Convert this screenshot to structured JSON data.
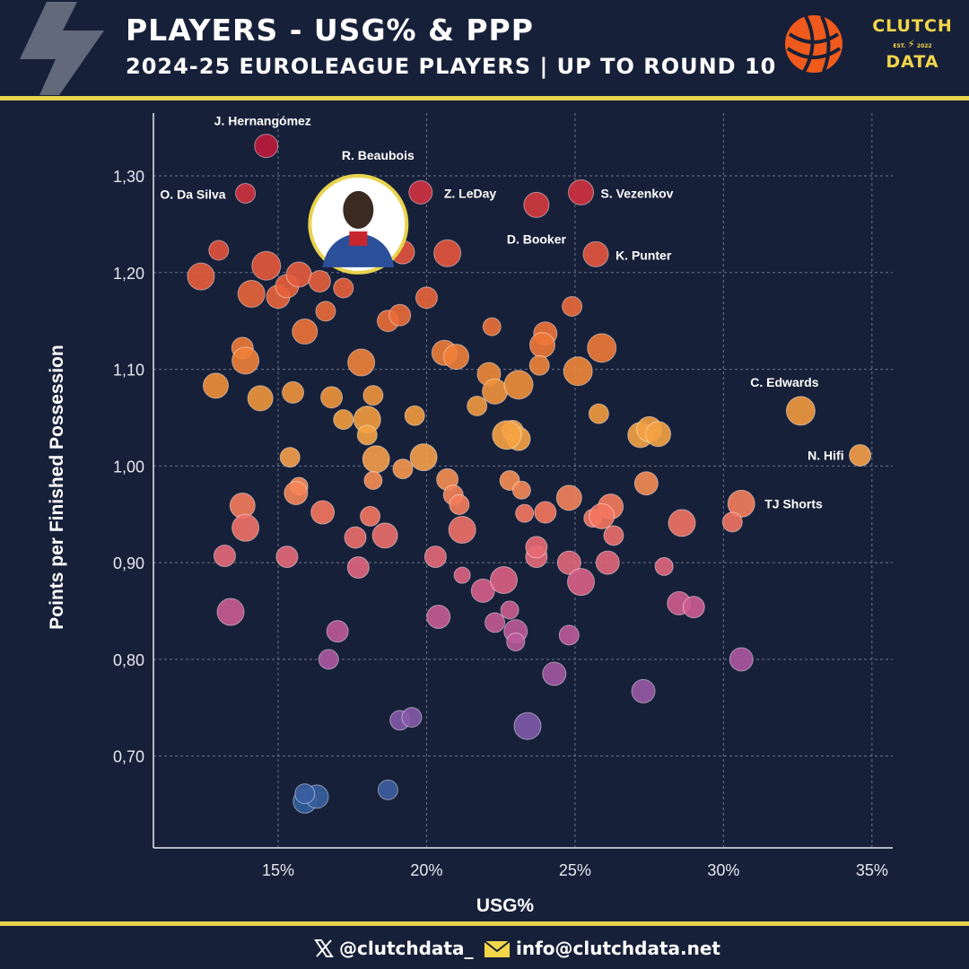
{
  "header": {
    "title": "PLAYERS - USG% & PPP",
    "subtitle": "2024-25 EUROLEAGUE PLAYERS | UP TO ROUND 10",
    "brand_line1": "CLUTCH",
    "brand_est": "EST.",
    "brand_year": "2022",
    "brand_line3": "DATA"
  },
  "footer": {
    "twitter": "@clutchdata_",
    "email": "info@clutchdata.net"
  },
  "colors": {
    "background": "#172039",
    "accent": "#e8d34d",
    "grid": "#6b7386"
  },
  "chart_data": {
    "type": "scatter",
    "xlabel": "USG%",
    "ylabel": "Points per Finished Possession",
    "xlim": [
      10.8,
      35.7
    ],
    "ylim": [
      0.605,
      1.365
    ],
    "x_ticks": [
      15,
      20,
      25,
      30,
      35
    ],
    "x_tick_labels": [
      "15%",
      "20%",
      "25%",
      "30%",
      "35%"
    ],
    "y_ticks": [
      0.7,
      0.8,
      0.9,
      1.0,
      1.1,
      1.2,
      1.3
    ],
    "y_tick_labels": [
      "0,70",
      "0,80",
      "0,90",
      "1,00",
      "1,10",
      "1,20",
      "1,30"
    ],
    "grid": true,
    "color_scale": "blue (low PPP) to purple to pink to orange to yellow to red (high PPP)",
    "highlighted_player": "R. Beaubois",
    "labeled_points": [
      {
        "name": "J. Hernangómez",
        "x": 14.6,
        "y": 1.331
      },
      {
        "name": "O. Da Silva",
        "x": 13.9,
        "y": 1.282
      },
      {
        "name": "R. Beaubois",
        "x": 17.7,
        "y": 1.25
      },
      {
        "name": "Z. LeDay",
        "x": 19.8,
        "y": 1.283
      },
      {
        "name": "S. Vezenkov",
        "x": 25.2,
        "y": 1.283
      },
      {
        "name": "D. Booker",
        "x": 23.7,
        "y": 1.27
      },
      {
        "name": "K. Punter",
        "x": 25.7,
        "y": 1.219
      },
      {
        "name": "C. Edwards",
        "x": 32.6,
        "y": 1.057
      },
      {
        "name": "N. Hifi",
        "x": 34.6,
        "y": 1.011
      },
      {
        "name": "TJ Shorts",
        "x": 30.6,
        "y": 0.961
      }
    ],
    "points": [
      {
        "x": 14.6,
        "y": 1.331,
        "s": 13
      },
      {
        "x": 13.9,
        "y": 1.282,
        "s": 11
      },
      {
        "x": 19.8,
        "y": 1.283,
        "s": 13
      },
      {
        "x": 25.2,
        "y": 1.283,
        "s": 14
      },
      {
        "x": 23.7,
        "y": 1.27,
        "s": 14
      },
      {
        "x": 25.7,
        "y": 1.219,
        "s": 14
      },
      {
        "x": 32.6,
        "y": 1.057,
        "s": 16
      },
      {
        "x": 34.6,
        "y": 1.011,
        "s": 12
      },
      {
        "x": 30.6,
        "y": 0.961,
        "s": 15
      },
      {
        "x": 12.4,
        "y": 1.196,
        "s": 15
      },
      {
        "x": 13.0,
        "y": 1.223,
        "s": 11
      },
      {
        "x": 14.6,
        "y": 1.207,
        "s": 16
      },
      {
        "x": 14.1,
        "y": 1.178,
        "s": 15
      },
      {
        "x": 15.0,
        "y": 1.175,
        "s": 13
      },
      {
        "x": 15.3,
        "y": 1.186,
        "s": 13
      },
      {
        "x": 15.7,
        "y": 1.198,
        "s": 14
      },
      {
        "x": 16.4,
        "y": 1.191,
        "s": 12
      },
      {
        "x": 17.2,
        "y": 1.184,
        "s": 11
      },
      {
        "x": 16.6,
        "y": 1.16,
        "s": 11
      },
      {
        "x": 15.9,
        "y": 1.139,
        "s": 14
      },
      {
        "x": 19.2,
        "y": 1.221,
        "s": 13
      },
      {
        "x": 20.7,
        "y": 1.22,
        "s": 15
      },
      {
        "x": 18.7,
        "y": 1.15,
        "s": 12
      },
      {
        "x": 19.1,
        "y": 1.156,
        "s": 12
      },
      {
        "x": 20.0,
        "y": 1.174,
        "s": 12
      },
      {
        "x": 22.2,
        "y": 1.144,
        "s": 10
      },
      {
        "x": 24.0,
        "y": 1.137,
        "s": 13
      },
      {
        "x": 23.9,
        "y": 1.125,
        "s": 14
      },
      {
        "x": 24.9,
        "y": 1.165,
        "s": 11
      },
      {
        "x": 25.9,
        "y": 1.122,
        "s": 16
      },
      {
        "x": 13.8,
        "y": 1.122,
        "s": 12
      },
      {
        "x": 13.9,
        "y": 1.109,
        "s": 15
      },
      {
        "x": 12.9,
        "y": 1.083,
        "s": 14
      },
      {
        "x": 14.4,
        "y": 1.07,
        "s": 14
      },
      {
        "x": 15.5,
        "y": 1.076,
        "s": 12
      },
      {
        "x": 16.8,
        "y": 1.071,
        "s": 12
      },
      {
        "x": 17.8,
        "y": 1.107,
        "s": 15
      },
      {
        "x": 18.2,
        "y": 1.073,
        "s": 11
      },
      {
        "x": 20.6,
        "y": 1.117,
        "s": 14
      },
      {
        "x": 21.0,
        "y": 1.113,
        "s": 14
      },
      {
        "x": 22.1,
        "y": 1.095,
        "s": 13
      },
      {
        "x": 22.3,
        "y": 1.077,
        "s": 14
      },
      {
        "x": 23.1,
        "y": 1.084,
        "s": 16
      },
      {
        "x": 23.8,
        "y": 1.104,
        "s": 11
      },
      {
        "x": 25.1,
        "y": 1.098,
        "s": 16
      },
      {
        "x": 25.8,
        "y": 1.054,
        "s": 11
      },
      {
        "x": 17.2,
        "y": 1.048,
        "s": 11
      },
      {
        "x": 18.0,
        "y": 1.048,
        "s": 15
      },
      {
        "x": 18.0,
        "y": 1.032,
        "s": 11
      },
      {
        "x": 19.6,
        "y": 1.052,
        "s": 11
      },
      {
        "x": 21.7,
        "y": 1.062,
        "s": 11
      },
      {
        "x": 22.9,
        "y": 1.036,
        "s": 12
      },
      {
        "x": 23.1,
        "y": 1.028,
        "s": 13
      },
      {
        "x": 22.7,
        "y": 1.032,
        "s": 16
      },
      {
        "x": 27.2,
        "y": 1.032,
        "s": 14
      },
      {
        "x": 27.5,
        "y": 1.038,
        "s": 14
      },
      {
        "x": 27.8,
        "y": 1.033,
        "s": 14
      },
      {
        "x": 15.4,
        "y": 1.009,
        "s": 11
      },
      {
        "x": 18.3,
        "y": 1.007,
        "s": 15
      },
      {
        "x": 19.2,
        "y": 0.997,
        "s": 11
      },
      {
        "x": 19.9,
        "y": 1.009,
        "s": 15
      },
      {
        "x": 18.2,
        "y": 0.985,
        "s": 10
      },
      {
        "x": 15.7,
        "y": 0.979,
        "s": 10
      },
      {
        "x": 15.6,
        "y": 0.972,
        "s": 13
      },
      {
        "x": 20.7,
        "y": 0.986,
        "s": 12
      },
      {
        "x": 20.9,
        "y": 0.97,
        "s": 11
      },
      {
        "x": 21.1,
        "y": 0.96,
        "s": 11
      },
      {
        "x": 22.8,
        "y": 0.985,
        "s": 11
      },
      {
        "x": 23.2,
        "y": 0.975,
        "s": 10
      },
      {
        "x": 24.8,
        "y": 0.967,
        "s": 14
      },
      {
        "x": 27.4,
        "y": 0.982,
        "s": 13
      },
      {
        "x": 13.8,
        "y": 0.959,
        "s": 14
      },
      {
        "x": 13.9,
        "y": 0.936,
        "s": 15
      },
      {
        "x": 16.5,
        "y": 0.952,
        "s": 13
      },
      {
        "x": 18.1,
        "y": 0.948,
        "s": 11
      },
      {
        "x": 17.6,
        "y": 0.926,
        "s": 12
      },
      {
        "x": 18.6,
        "y": 0.928,
        "s": 14
      },
      {
        "x": 21.2,
        "y": 0.934,
        "s": 15
      },
      {
        "x": 23.3,
        "y": 0.951,
        "s": 10
      },
      {
        "x": 24.0,
        "y": 0.952,
        "s": 12
      },
      {
        "x": 25.6,
        "y": 0.946,
        "s": 10
      },
      {
        "x": 26.2,
        "y": 0.958,
        "s": 14
      },
      {
        "x": 25.9,
        "y": 0.948,
        "s": 14
      },
      {
        "x": 26.3,
        "y": 0.928,
        "s": 11
      },
      {
        "x": 28.6,
        "y": 0.941,
        "s": 15
      },
      {
        "x": 30.3,
        "y": 0.942,
        "s": 11
      },
      {
        "x": 13.2,
        "y": 0.907,
        "s": 12
      },
      {
        "x": 15.3,
        "y": 0.906,
        "s": 12
      },
      {
        "x": 17.7,
        "y": 0.895,
        "s": 12
      },
      {
        "x": 20.3,
        "y": 0.906,
        "s": 12
      },
      {
        "x": 21.2,
        "y": 0.887,
        "s": 9
      },
      {
        "x": 21.9,
        "y": 0.871,
        "s": 13
      },
      {
        "x": 22.6,
        "y": 0.882,
        "s": 15
      },
      {
        "x": 23.7,
        "y": 0.906,
        "s": 12
      },
      {
        "x": 23.7,
        "y": 0.916,
        "s": 12
      },
      {
        "x": 24.8,
        "y": 0.9,
        "s": 13
      },
      {
        "x": 25.2,
        "y": 0.88,
        "s": 15
      },
      {
        "x": 26.1,
        "y": 0.9,
        "s": 13
      },
      {
        "x": 28.0,
        "y": 0.896,
        "s": 10
      },
      {
        "x": 13.4,
        "y": 0.849,
        "s": 15
      },
      {
        "x": 17.0,
        "y": 0.829,
        "s": 12
      },
      {
        "x": 20.4,
        "y": 0.844,
        "s": 13
      },
      {
        "x": 22.3,
        "y": 0.838,
        "s": 11
      },
      {
        "x": 22.8,
        "y": 0.851,
        "s": 10
      },
      {
        "x": 23.0,
        "y": 0.829,
        "s": 13
      },
      {
        "x": 23.0,
        "y": 0.818,
        "s": 10
      },
      {
        "x": 24.8,
        "y": 0.825,
        "s": 11
      },
      {
        "x": 28.5,
        "y": 0.858,
        "s": 13
      },
      {
        "x": 29.0,
        "y": 0.854,
        "s": 12
      },
      {
        "x": 16.7,
        "y": 0.8,
        "s": 11
      },
      {
        "x": 24.3,
        "y": 0.785,
        "s": 13
      },
      {
        "x": 27.3,
        "y": 0.767,
        "s": 13
      },
      {
        "x": 30.6,
        "y": 0.8,
        "s": 13
      },
      {
        "x": 19.1,
        "y": 0.737,
        "s": 11
      },
      {
        "x": 19.5,
        "y": 0.74,
        "s": 11
      },
      {
        "x": 23.4,
        "y": 0.731,
        "s": 15
      },
      {
        "x": 15.9,
        "y": 0.653,
        "s": 13
      },
      {
        "x": 16.3,
        "y": 0.658,
        "s": 13
      },
      {
        "x": 15.9,
        "y": 0.661,
        "s": 11
      },
      {
        "x": 18.7,
        "y": 0.665,
        "s": 11
      }
    ]
  }
}
